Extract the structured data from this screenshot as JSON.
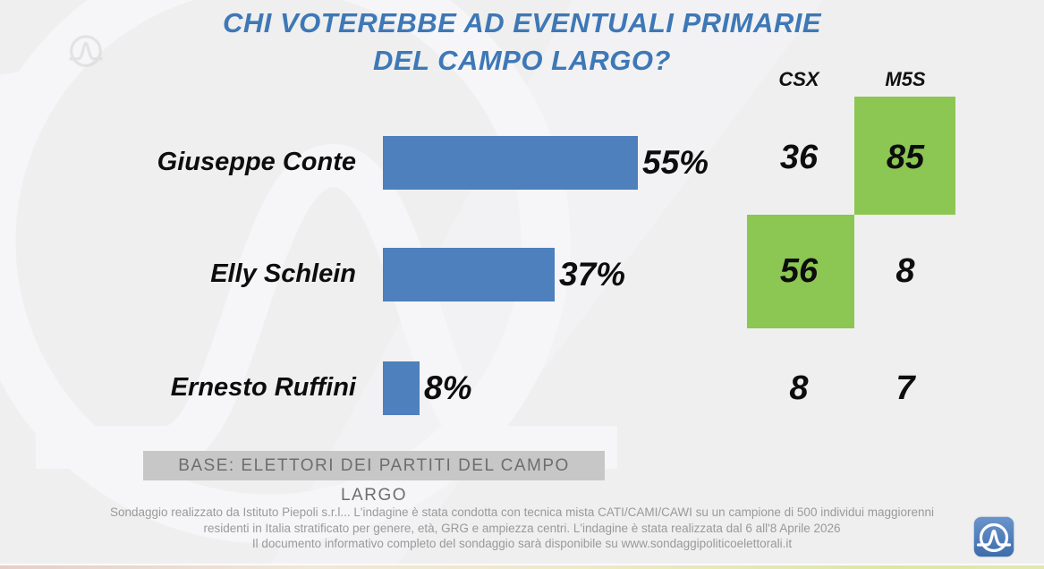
{
  "title": {
    "line1": "CHI VOTEREBBE AD EVENTUALI PRIMARIE",
    "line2": "DEL CAMPO LARGO?"
  },
  "chart_data": {
    "type": "bar",
    "orientation": "horizontal",
    "title": "CHI VOTEREBBE AD EVENTUALI PRIMARIE DEL CAMPO LARGO?",
    "categories": [
      "Giuseppe Conte",
      "Elly Schlein",
      "Ernesto Ruffini"
    ],
    "values": [
      55,
      37,
      8
    ],
    "value_labels": [
      "55%",
      "37%",
      "8%"
    ],
    "xlim": [
      0,
      100
    ],
    "grid": false,
    "columns": [
      "CSX",
      "M5S"
    ],
    "matrix": [
      [
        36,
        85
      ],
      [
        56,
        8
      ],
      [
        8,
        7
      ]
    ],
    "highlighted_cells": [
      {
        "row": "Giuseppe Conte",
        "column": "M5S",
        "value": 85
      },
      {
        "row": "Elly Schlein",
        "column": "CSX",
        "value": 56
      }
    ],
    "bar_color": "#4d80bd",
    "highlight_color": "#8cc653"
  },
  "base_note": "BASE: ELETTORI DEI PARTITI DEL CAMPO LARGO",
  "footer": {
    "lines": [
      "Sondaggio realizzato da Istituto Piepoli s.r.l... L'indagine è stata condotta con tecnica mista CATI/CAMI/CAWI su un campione di 500 individui maggiorenni",
      "residenti in Italia stratificato per genere, età, GRG e ampiezza centri. L'indagine è stata realizzata dal 6 all'8 Aprile 2026",
      "Il documento informativo completo del sondaggio sarà disponibile su www.sondaggipoliticoelettorali.it"
    ]
  },
  "colors": {
    "title": "#3e78b6",
    "background": "#efeff0",
    "base_note_bg": "#c7c7c7",
    "logo_blue": "#4a7fc1"
  },
  "logo": {
    "name": "istituto-piepoli-logo"
  }
}
